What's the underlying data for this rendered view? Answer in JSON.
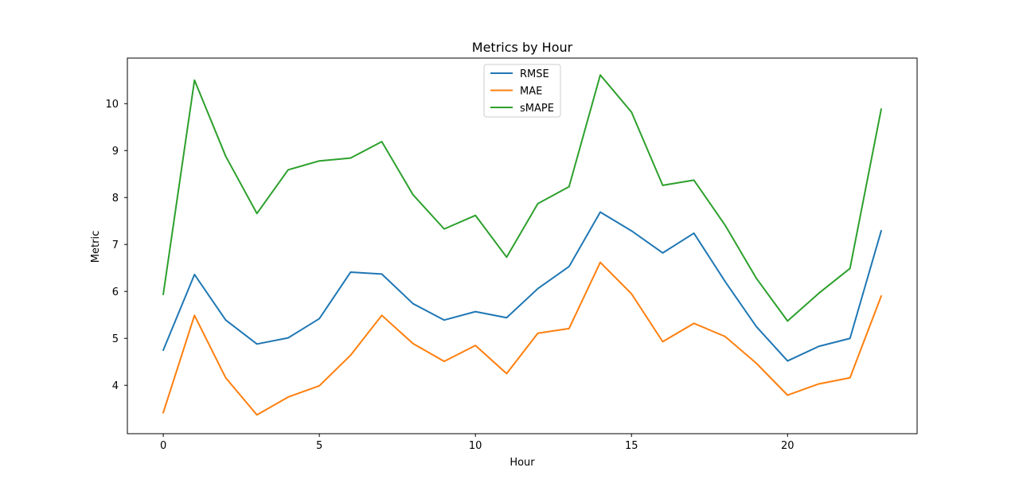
{
  "chart_data": {
    "type": "line",
    "title": "Metrics by Hour",
    "xlabel": "Hour",
    "ylabel": "Metric",
    "x": [
      0,
      1,
      2,
      3,
      4,
      5,
      6,
      7,
      8,
      9,
      10,
      11,
      12,
      13,
      14,
      15,
      16,
      17,
      18,
      19,
      20,
      21,
      22,
      23
    ],
    "xlim": [
      -1.15,
      24.15
    ],
    "ylim": [
      2.97,
      10.97
    ],
    "xticks": [
      0,
      5,
      10,
      15,
      20
    ],
    "yticks": [
      4,
      5,
      6,
      7,
      8,
      9,
      10
    ],
    "grid": false,
    "legend_position": "top-center",
    "series": [
      {
        "name": "RMSE",
        "color": "#1f77b4",
        "values": [
          4.75,
          6.36,
          5.39,
          4.88,
          5.01,
          5.42,
          6.41,
          6.37,
          5.74,
          5.39,
          5.57,
          5.44,
          6.06,
          6.53,
          7.69,
          7.29,
          6.82,
          7.24,
          6.21,
          5.25,
          4.52,
          4.83,
          5.0,
          7.29
        ]
      },
      {
        "name": "MAE",
        "color": "#ff7f0e",
        "values": [
          3.42,
          5.49,
          4.16,
          3.37,
          3.75,
          3.99,
          4.64,
          5.49,
          4.89,
          4.51,
          4.85,
          4.25,
          5.11,
          5.21,
          6.62,
          5.95,
          4.93,
          5.32,
          5.04,
          4.47,
          3.79,
          4.03,
          4.16,
          5.9
        ]
      },
      {
        "name": "sMAPE",
        "color": "#2ca02c",
        "values": [
          5.94,
          10.5,
          8.88,
          7.66,
          8.59,
          8.78,
          8.84,
          9.19,
          8.06,
          7.33,
          7.62,
          6.73,
          7.87,
          8.23,
          10.61,
          9.82,
          8.26,
          8.37,
          7.41,
          6.28,
          5.37,
          5.96,
          6.49,
          9.88
        ]
      }
    ]
  }
}
